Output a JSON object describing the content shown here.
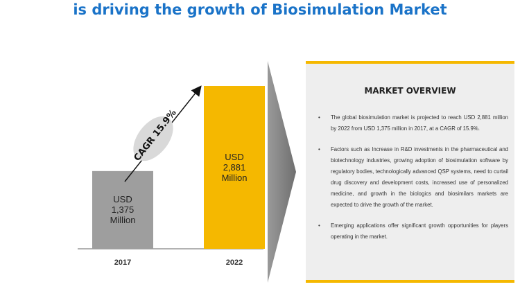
{
  "headline": "is driving the growth of Biosimulation Market",
  "chart_data": {
    "type": "bar",
    "categories": [
      "2017",
      "2022"
    ],
    "values": [
      1375,
      2881
    ],
    "value_labels": [
      [
        "USD",
        "1,375",
        "Million"
      ],
      [
        "USD",
        "2,881",
        "Million"
      ]
    ],
    "cagr_label": "CAGR 15.9%",
    "colors": [
      "#9e9e9e",
      "#f5b800"
    ]
  },
  "overview": {
    "title": "MARKET OVERVIEW",
    "bullets": [
      "The global biosimulation market is projected to reach USD 2,881 million by 2022 from USD 1,375 million in 2017, at a CAGR of 15.9%.",
      "Factors such as Increase in R&D investments in the pharmaceutical and biotechnology industries, growing adoption of biosimulation software by regulatory bodies, technologically advanced QSP systems, need to curtail drug discovery and development costs, increased use of personalized medicine, and growth in the biologics and biosimilars markets are expected to drive the growth of the market.",
      "Emerging applications offer significant growth opportunities for players operating in the market."
    ]
  }
}
